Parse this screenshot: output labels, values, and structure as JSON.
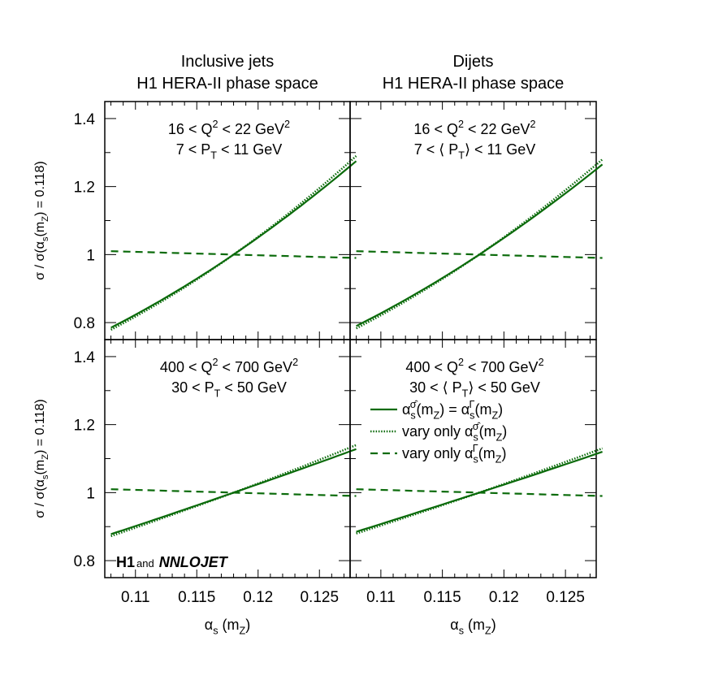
{
  "chart_data": [
    {
      "type": "line",
      "column_title": [
        "Inclusive jets",
        "H1 HERA-II phase space"
      ],
      "labels": [
        "16 < Q^{2} < 22 GeV^{2}",
        "7 < P_{T} < 11 GeV"
      ],
      "xlabel": "α_{s} (m_{Z})",
      "ylabel": "σ / σ(α_{s}(m_{Z}) = 0.118)",
      "xlim": [
        0.1075,
        0.1275
      ],
      "ylim": [
        0.75,
        1.45
      ],
      "x": [
        0.108,
        0.113,
        0.118,
        0.123,
        0.128
      ],
      "series": [
        {
          "style": "solid",
          "values": [
            0.785,
            0.885,
            1.0,
            1.13,
            1.275
          ]
        },
        {
          "style": "dotted",
          "values": [
            0.779,
            0.881,
            1.0,
            1.136,
            1.29
          ]
        },
        {
          "style": "dashed",
          "values": [
            1.01,
            1.005,
            1.0,
            0.995,
            0.99
          ]
        }
      ]
    },
    {
      "type": "line",
      "column_title": [
        "Dijets",
        "H1 HERA-II phase space"
      ],
      "labels": [
        "16 < Q^{2} < 22 GeV^{2}",
        "7 < ⟨ P_{T}⟩ < 11 GeV"
      ],
      "xlim": [
        0.1075,
        0.1275
      ],
      "ylim": [
        0.75,
        1.45
      ],
      "x": [
        0.108,
        0.113,
        0.118,
        0.123,
        0.128
      ],
      "series": [
        {
          "style": "solid",
          "values": [
            0.79,
            0.888,
            1.0,
            1.126,
            1.265
          ]
        },
        {
          "style": "dotted",
          "values": [
            0.783,
            0.884,
            1.0,
            1.132,
            1.28
          ]
        },
        {
          "style": "dashed",
          "values": [
            1.01,
            1.005,
            1.0,
            0.995,
            0.99
          ]
        }
      ]
    },
    {
      "type": "line",
      "labels": [
        "400 < Q^{2} < 700 GeV^{2}",
        "30 < P_{T} < 50 GeV"
      ],
      "xlabel": "α_{s} (m_{Z})",
      "ylabel": "σ / σ(α_{s}(m_{Z}) = 0.118)",
      "xlim": [
        0.1075,
        0.1275
      ],
      "ylim": [
        0.75,
        1.45
      ],
      "x": [
        0.108,
        0.113,
        0.118,
        0.123,
        0.128
      ],
      "series": [
        {
          "style": "solid",
          "values": [
            0.878,
            0.938,
            1.0,
            1.063,
            1.128
          ]
        },
        {
          "style": "dotted",
          "values": [
            0.872,
            0.935,
            1.0,
            1.068,
            1.14
          ]
        },
        {
          "style": "dashed",
          "values": [
            1.01,
            1.005,
            1.0,
            0.995,
            0.99
          ]
        }
      ]
    },
    {
      "type": "line",
      "labels": [
        "400 < Q^{2} < 700 GeV^{2}",
        "30 < ⟨ P_{T}⟩ < 50 GeV"
      ],
      "xlabel": "α_{s} (m_{Z})",
      "xlim": [
        0.1075,
        0.1275
      ],
      "ylim": [
        0.75,
        1.45
      ],
      "x": [
        0.108,
        0.113,
        0.118,
        0.123,
        0.128
      ],
      "series": [
        {
          "style": "solid",
          "values": [
            0.885,
            0.942,
            1.0,
            1.059,
            1.12
          ]
        },
        {
          "style": "dotted",
          "values": [
            0.88,
            0.939,
            1.0,
            1.064,
            1.13
          ]
        },
        {
          "style": "dashed",
          "values": [
            1.01,
            1.005,
            1.0,
            0.995,
            0.99
          ]
        }
      ]
    }
  ],
  "axes": {
    "xticks": [
      0.11,
      0.115,
      0.12,
      0.125
    ],
    "xtick_labels": [
      "0.11",
      "0.115",
      "0.12",
      "0.125"
    ],
    "yticks": [
      0.8,
      1.0,
      1.2,
      1.4
    ],
    "ytick_labels": [
      "0.8",
      "1",
      "1.2",
      "1.4"
    ]
  },
  "legend": [
    {
      "style": "solid",
      "label": "α_{s}^{σ̂}(m_{Z})  = α_{s}^{Γ}(m_{Z})"
    },
    {
      "style": "dotted",
      "label": "vary only α_{s}^{σ̂}(m_{Z})"
    },
    {
      "style": "dashed",
      "label": "vary only α_{s}^{Γ}(m_{Z})"
    }
  ],
  "logo": {
    "h1": "H1",
    "and": "and",
    "nnlojet": "NNLOJET"
  },
  "colors": {
    "line": "#0b6b0b",
    "axis": "#000000"
  }
}
